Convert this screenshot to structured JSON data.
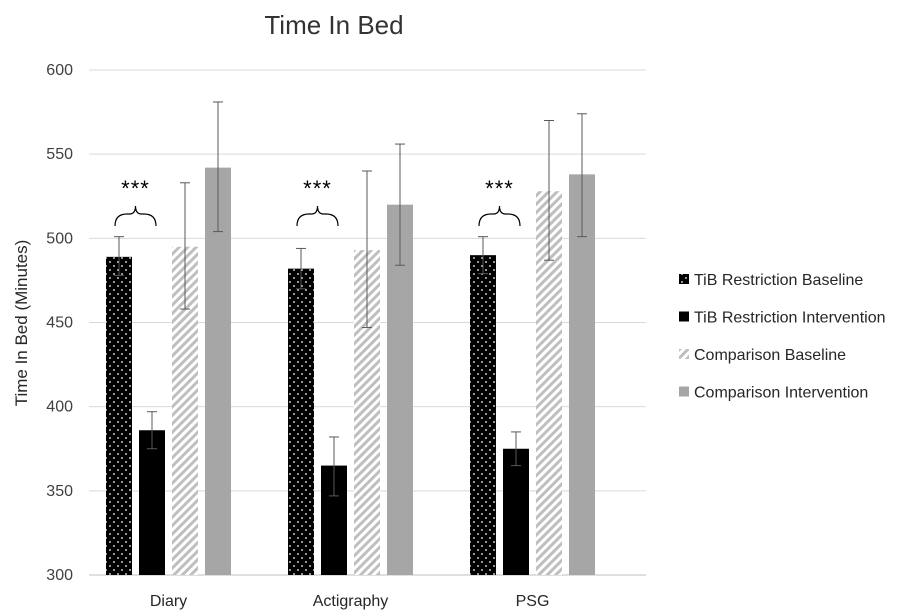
{
  "chart_data": {
    "type": "bar",
    "title": "Time In Bed",
    "xlabel": "",
    "ylabel": "Time In Bed (Minutes)",
    "ylim": [
      300,
      600
    ],
    "yticks": [
      300,
      350,
      400,
      450,
      500,
      550,
      600
    ],
    "grid": true,
    "legend_position": "right",
    "categories": [
      "Diary",
      "Actigraphy",
      "PSG"
    ],
    "series": [
      {
        "name": "TiB Restriction Baseline",
        "pattern": "dots",
        "color": "#000000",
        "values": [
          489,
          482,
          490
        ],
        "error_low": [
          478,
          470,
          479
        ],
        "error_high": [
          501,
          494,
          501
        ]
      },
      {
        "name": "TiB Restriction Intervention",
        "pattern": "solid",
        "color": "#000000",
        "values": [
          386,
          365,
          375
        ],
        "error_low": [
          375,
          347,
          365
        ],
        "error_high": [
          397,
          382,
          385
        ]
      },
      {
        "name": "Comparison Baseline",
        "pattern": "diagonal-stripes",
        "color": "#bfbfbf",
        "values": [
          495,
          493,
          528
        ],
        "error_low": [
          458,
          447,
          487
        ],
        "error_high": [
          533,
          540,
          570
        ]
      },
      {
        "name": "Comparison Intervention",
        "pattern": "solid",
        "color": "#a6a6a6",
        "values": [
          542,
          520,
          538
        ],
        "error_low": [
          504,
          484,
          501
        ],
        "error_high": [
          581,
          556,
          574
        ]
      }
    ],
    "annotations": [
      {
        "category": "Diary",
        "text": "***",
        "between": [
          0,
          1
        ]
      },
      {
        "category": "Actigraphy",
        "text": "***",
        "between": [
          0,
          1
        ]
      },
      {
        "category": "PSG",
        "text": "***",
        "between": [
          0,
          1
        ]
      }
    ]
  }
}
